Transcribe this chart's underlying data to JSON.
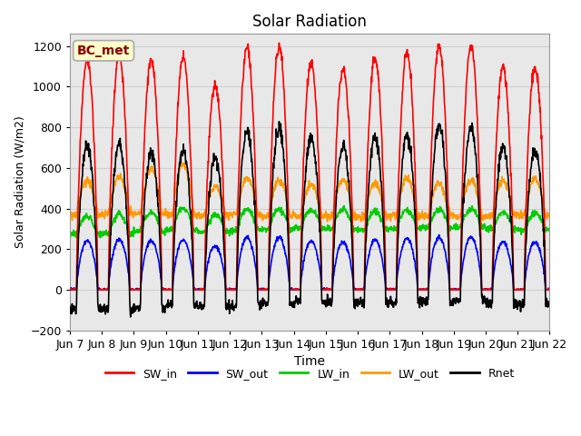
{
  "title": "Solar Radiation",
  "xlabel": "Time",
  "ylabel": "Solar Radiation (W/m2)",
  "ylim": [
    -200,
    1260
  ],
  "yticks": [
    -200,
    0,
    200,
    400,
    600,
    800,
    1000,
    1200
  ],
  "label": "BC_met",
  "series": {
    "SW_in": {
      "color": "#ff0000",
      "lw": 1.2
    },
    "SW_out": {
      "color": "#0000ff",
      "lw": 1.2
    },
    "LW_in": {
      "color": "#00cc00",
      "lw": 1.2
    },
    "LW_out": {
      "color": "#ff9900",
      "lw": 1.2
    },
    "Rnet": {
      "color": "#000000",
      "lw": 1.2
    }
  },
  "xtick_labels": [
    "Jun 7",
    "Jun 8",
    "Jun 9",
    "Jun 10",
    "Jun 11",
    "Jun 12",
    "Jun 13",
    "Jun 14",
    "Jun 15",
    "Jun 16",
    "Jun 17",
    "Jun 18",
    "Jun 19",
    "Jun 20",
    "Jun 21",
    "Jun 22"
  ],
  "n_days": 15,
  "dt_hours": 0.25,
  "background_color": "#ffffff",
  "grid_color": "#d0d0d0",
  "ax_facecolor": "#e8e8e8"
}
